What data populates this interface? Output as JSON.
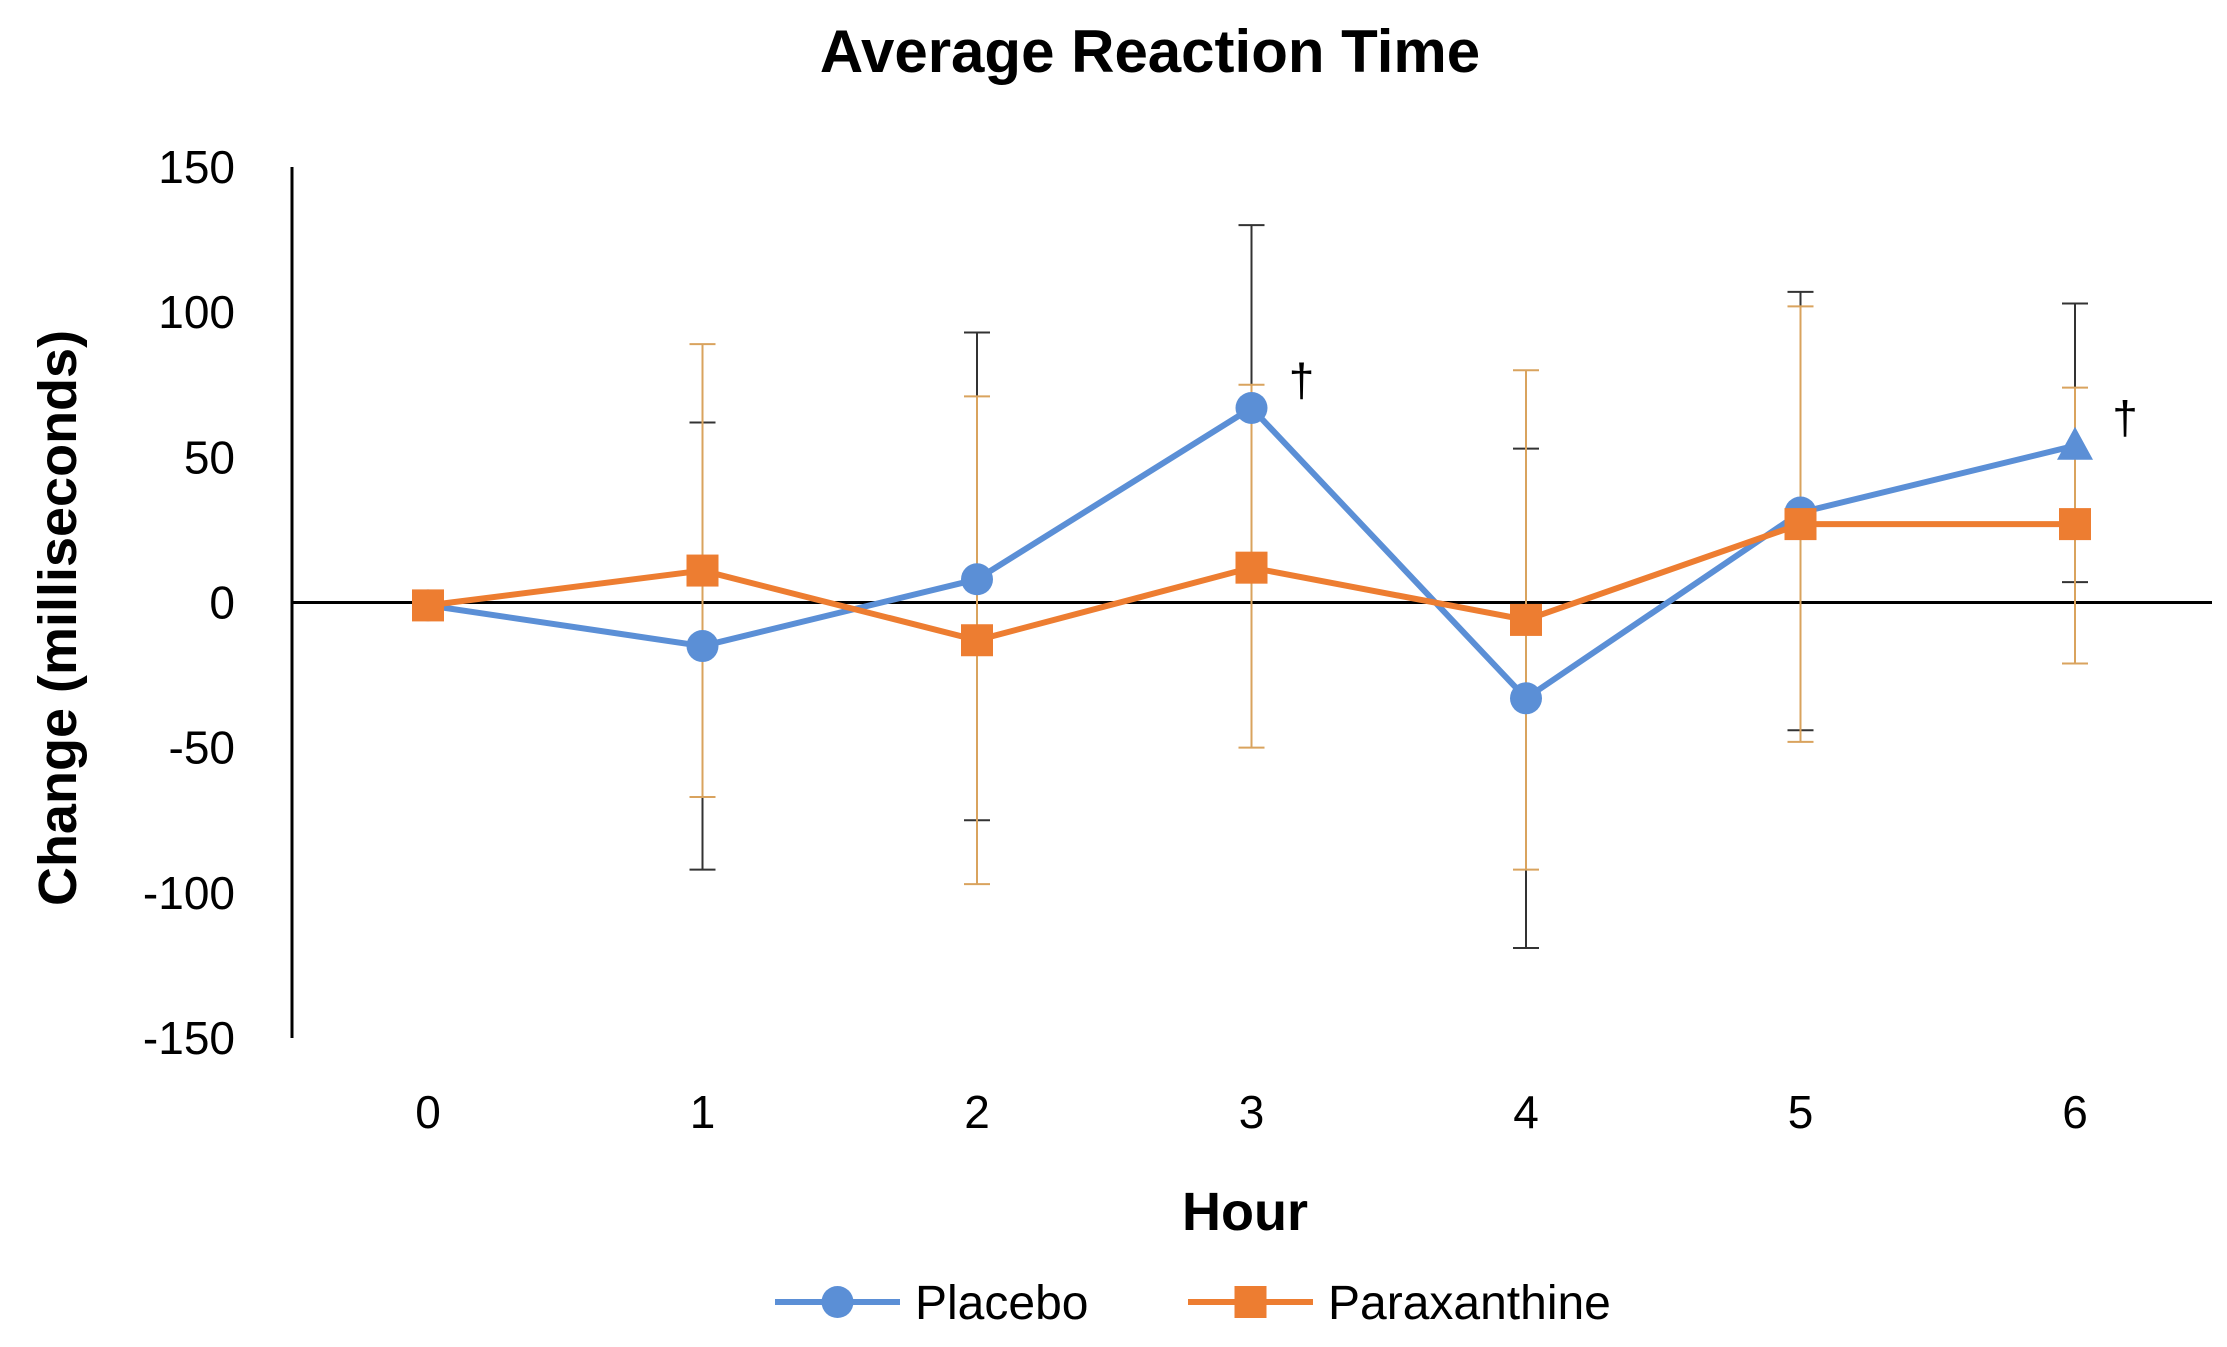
{
  "chart_data": {
    "type": "line",
    "title": "Average Reaction Time",
    "xlabel": "Hour",
    "ylabel": "Change (milliseconds)",
    "x": [
      0,
      1,
      2,
      3,
      4,
      5,
      6
    ],
    "x_tick_labels": [
      "0",
      "1",
      "2",
      "3",
      "4",
      "5",
      "6"
    ],
    "ylim": [
      -150,
      150
    ],
    "y_ticks": [
      150,
      100,
      50,
      0,
      -50,
      -100,
      -150
    ],
    "y_tick_labels": [
      "150",
      "100",
      "50",
      "0",
      "-50",
      "-100",
      "-150"
    ],
    "legend_position": "bottom",
    "series": [
      {
        "name": "Placebo",
        "color": "#5b8fd6",
        "error_bar_color": "#333333",
        "marker": "circle",
        "values": [
          -1,
          -15,
          8,
          67,
          -33,
          31,
          54
        ],
        "error_upper": [
          -1,
          62,
          93,
          130,
          53,
          107,
          103
        ],
        "error_lower": [
          -1,
          -92,
          -75,
          7,
          -119,
          -44,
          7
        ],
        "markers_by_point": [
          "circle",
          "circle",
          "circle",
          "circle",
          "circle",
          "circle",
          "triangle"
        ]
      },
      {
        "name": "Paraxanthine",
        "color": "#ed7d31",
        "error_bar_color": "#d9a35e",
        "marker": "square",
        "values": [
          -1,
          11,
          -13,
          12,
          -6,
          27,
          27
        ],
        "error_upper": [
          -1,
          89,
          71,
          75,
          80,
          102,
          74
        ],
        "error_lower": [
          -1,
          -67,
          -97,
          -50,
          -92,
          -48,
          -21
        ]
      }
    ],
    "annotations": [
      {
        "text": "†",
        "x": 3,
        "y": 67
      },
      {
        "text": "†",
        "x": 6,
        "y": 54
      }
    ]
  }
}
